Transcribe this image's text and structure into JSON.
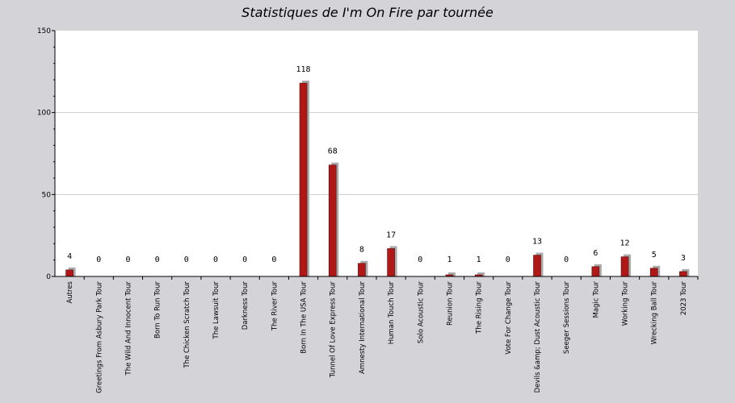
{
  "chart_data": {
    "type": "bar",
    "title": "Statistiques de I'm On Fire par tournée",
    "xlabel": "",
    "ylabel": "",
    "ylim": [
      0,
      150
    ],
    "yticks": [
      0,
      50,
      100,
      150
    ],
    "grid": true,
    "categories": [
      "Autres",
      "Greetings From Asbury Park Tour",
      "The Wild And Innocent Tour",
      "Born To Run Tour",
      "The Chicken Scratch Tour",
      "The Lawsuit Tour",
      "Darkness Tour",
      "The River Tour",
      "Born In The USA Tour",
      "Tunnel Of Love Express Tour",
      "Amnesty International Tour",
      "Human Touch Tour",
      "Solo Acoustic Tour",
      "Reunion Tour",
      "The Rising Tour",
      "Vote For Change Tour",
      "Devils &amp; Dust Acoustic Tour",
      "Seeger Sessions Tour",
      "Magic Tour",
      "Working Tour",
      "Wrecking Ball Tour",
      "2023 Tour"
    ],
    "values": [
      4,
      0,
      0,
      0,
      0,
      0,
      0,
      0,
      118,
      68,
      8,
      17,
      0,
      1,
      1,
      0,
      13,
      0,
      6,
      12,
      5,
      3
    ],
    "colors": {
      "bar": "#b01818",
      "bar_edge": "#5a0a0a",
      "shadow": "#aaaaaa",
      "plot_bg": "#ffffff",
      "page_bg": "#d4d3d7",
      "grid": "#cccccc"
    }
  }
}
